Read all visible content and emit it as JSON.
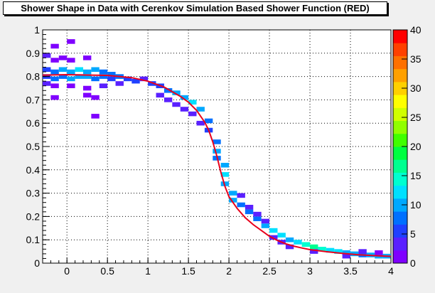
{
  "chart_data": {
    "type": "heatmap",
    "title": "Shower Shape in Data with Cerenkov Simulation Based Shower Function (RED)",
    "xlabel": "",
    "ylabel": "",
    "xlim": [
      -0.3,
      4.0
    ],
    "ylim": [
      0,
      1.0
    ],
    "x_ticks": [
      "0",
      "0.5",
      "1",
      "1.5",
      "2",
      "2.5",
      "3",
      "3.5",
      "4"
    ],
    "y_ticks": [
      "0",
      "0.1",
      "0.2",
      "0.3",
      "0.4",
      "0.5",
      "0.6",
      "0.7",
      "0.8",
      "0.9",
      "1"
    ],
    "grid": true,
    "color_scale": {
      "min": 0,
      "max": 40,
      "ticks": [
        "0",
        "5",
        "10",
        "15",
        "20",
        "25",
        "30",
        "35",
        "40"
      ],
      "colors": [
        "#7f00ff",
        "#5a20ff",
        "#2040ff",
        "#0070ff",
        "#00a8ff",
        "#00e0ff",
        "#00ffd0",
        "#00ff90",
        "#00ff40",
        "#40ff00",
        "#90ff00",
        "#d0ff00",
        "#ffff00",
        "#ffd000",
        "#ffa000",
        "#ff7000",
        "#ff4000",
        "#ff0000"
      ]
    },
    "fit_function": {
      "name": "Cerenkov Simulation Based Shower Function",
      "color": "#e8001c",
      "points": [
        [
          -0.3,
          0.806
        ],
        [
          0,
          0.808
        ],
        [
          0.5,
          0.805
        ],
        [
          0.8,
          0.795
        ],
        [
          1.0,
          0.78
        ],
        [
          1.2,
          0.755
        ],
        [
          1.4,
          0.715
        ],
        [
          1.5,
          0.69
        ],
        [
          1.6,
          0.655
        ],
        [
          1.7,
          0.605
        ],
        [
          1.75,
          0.57
        ],
        [
          1.8,
          0.52
        ],
        [
          1.85,
          0.46
        ],
        [
          1.9,
          0.39
        ],
        [
          1.95,
          0.33
        ],
        [
          2.0,
          0.285
        ],
        [
          2.1,
          0.235
        ],
        [
          2.2,
          0.195
        ],
        [
          2.3,
          0.165
        ],
        [
          2.4,
          0.14
        ],
        [
          2.5,
          0.115
        ],
        [
          2.6,
          0.097
        ],
        [
          2.7,
          0.083
        ],
        [
          2.8,
          0.073
        ],
        [
          2.9,
          0.065
        ],
        [
          3.0,
          0.058
        ],
        [
          3.2,
          0.049
        ],
        [
          3.4,
          0.042
        ],
        [
          3.6,
          0.036
        ],
        [
          3.8,
          0.032
        ],
        [
          4.0,
          0.029
        ]
      ]
    },
    "cells": [
      [
        -0.25,
        0.89,
        3
      ],
      [
        -0.15,
        0.87,
        2
      ],
      [
        -0.05,
        0.88,
        2
      ],
      [
        0.05,
        0.87,
        2
      ],
      [
        0.05,
        0.95,
        1
      ],
      [
        -0.15,
        0.93,
        1
      ],
      [
        0.25,
        0.88,
        1
      ],
      [
        -0.25,
        0.83,
        6
      ],
      [
        -0.15,
        0.82,
        8
      ],
      [
        -0.05,
        0.83,
        9
      ],
      [
        0.05,
        0.82,
        11
      ],
      [
        0.15,
        0.83,
        12
      ],
      [
        0.25,
        0.82,
        10
      ],
      [
        0.35,
        0.83,
        9
      ],
      [
        0.45,
        0.82,
        8
      ],
      [
        0.55,
        0.81,
        7
      ],
      [
        -0.25,
        0.8,
        5
      ],
      [
        -0.15,
        0.79,
        7
      ],
      [
        -0.05,
        0.8,
        8
      ],
      [
        0.05,
        0.79,
        9
      ],
      [
        0.15,
        0.8,
        10
      ],
      [
        0.25,
        0.8,
        10
      ],
      [
        0.35,
        0.79,
        8
      ],
      [
        0.45,
        0.8,
        7
      ],
      [
        0.55,
        0.79,
        6
      ],
      [
        0.65,
        0.8,
        7
      ],
      [
        -0.25,
        0.77,
        3
      ],
      [
        -0.15,
        0.76,
        2
      ],
      [
        0.05,
        0.76,
        2
      ],
      [
        0.25,
        0.75,
        2
      ],
      [
        0.45,
        0.76,
        3
      ],
      [
        0.65,
        0.77,
        4
      ],
      [
        0.75,
        0.79,
        6
      ],
      [
        0.85,
        0.78,
        5
      ],
      [
        0.95,
        0.79,
        4
      ],
      [
        -0.15,
        0.71,
        1
      ],
      [
        0.25,
        0.72,
        1
      ],
      [
        0.35,
        0.71,
        1
      ],
      [
        0.35,
        0.63,
        1
      ],
      [
        1.05,
        0.77,
        5
      ],
      [
        1.15,
        0.76,
        6
      ],
      [
        1.25,
        0.74,
        7
      ],
      [
        1.35,
        0.73,
        9
      ],
      [
        1.45,
        0.71,
        11
      ],
      [
        1.55,
        0.69,
        12
      ],
      [
        1.65,
        0.66,
        10
      ],
      [
        1.75,
        0.61,
        8
      ],
      [
        1.15,
        0.72,
        3
      ],
      [
        1.25,
        0.7,
        4
      ],
      [
        1.35,
        0.68,
        3
      ],
      [
        1.45,
        0.66,
        3
      ],
      [
        1.55,
        0.64,
        3
      ],
      [
        1.65,
        0.6,
        4
      ],
      [
        1.75,
        0.57,
        6
      ],
      [
        1.85,
        0.52,
        7
      ],
      [
        1.85,
        0.48,
        9
      ],
      [
        1.85,
        0.45,
        8
      ],
      [
        1.95,
        0.42,
        9
      ],
      [
        1.95,
        0.38,
        12
      ],
      [
        1.95,
        0.34,
        11
      ],
      [
        2.05,
        0.3,
        9
      ],
      [
        2.05,
        0.27,
        10
      ],
      [
        2.15,
        0.25,
        8
      ],
      [
        2.25,
        0.22,
        7
      ],
      [
        2.35,
        0.19,
        8
      ],
      [
        2.45,
        0.16,
        10
      ],
      [
        2.55,
        0.14,
        12
      ],
      [
        2.65,
        0.12,
        13
      ],
      [
        2.75,
        0.1,
        11
      ],
      [
        2.85,
        0.09,
        12
      ],
      [
        2.95,
        0.08,
        14
      ],
      [
        3.05,
        0.07,
        17
      ],
      [
        3.15,
        0.06,
        14
      ],
      [
        3.25,
        0.055,
        12
      ],
      [
        3.35,
        0.05,
        13
      ],
      [
        3.45,
        0.045,
        10
      ],
      [
        3.55,
        0.04,
        9
      ],
      [
        3.65,
        0.035,
        8
      ],
      [
        3.75,
        0.035,
        9
      ],
      [
        3.85,
        0.03,
        10
      ],
      [
        3.95,
        0.03,
        11
      ],
      [
        2.15,
        0.29,
        4
      ],
      [
        2.25,
        0.24,
        4
      ],
      [
        2.35,
        0.21,
        4
      ],
      [
        2.45,
        0.18,
        3
      ],
      [
        2.55,
        0.11,
        3
      ],
      [
        2.65,
        0.09,
        3
      ],
      [
        2.75,
        0.07,
        4
      ],
      [
        3.05,
        0.05,
        4
      ],
      [
        3.45,
        0.03,
        4
      ],
      [
        3.65,
        0.05,
        3
      ],
      [
        3.85,
        0.045,
        2
      ]
    ]
  }
}
